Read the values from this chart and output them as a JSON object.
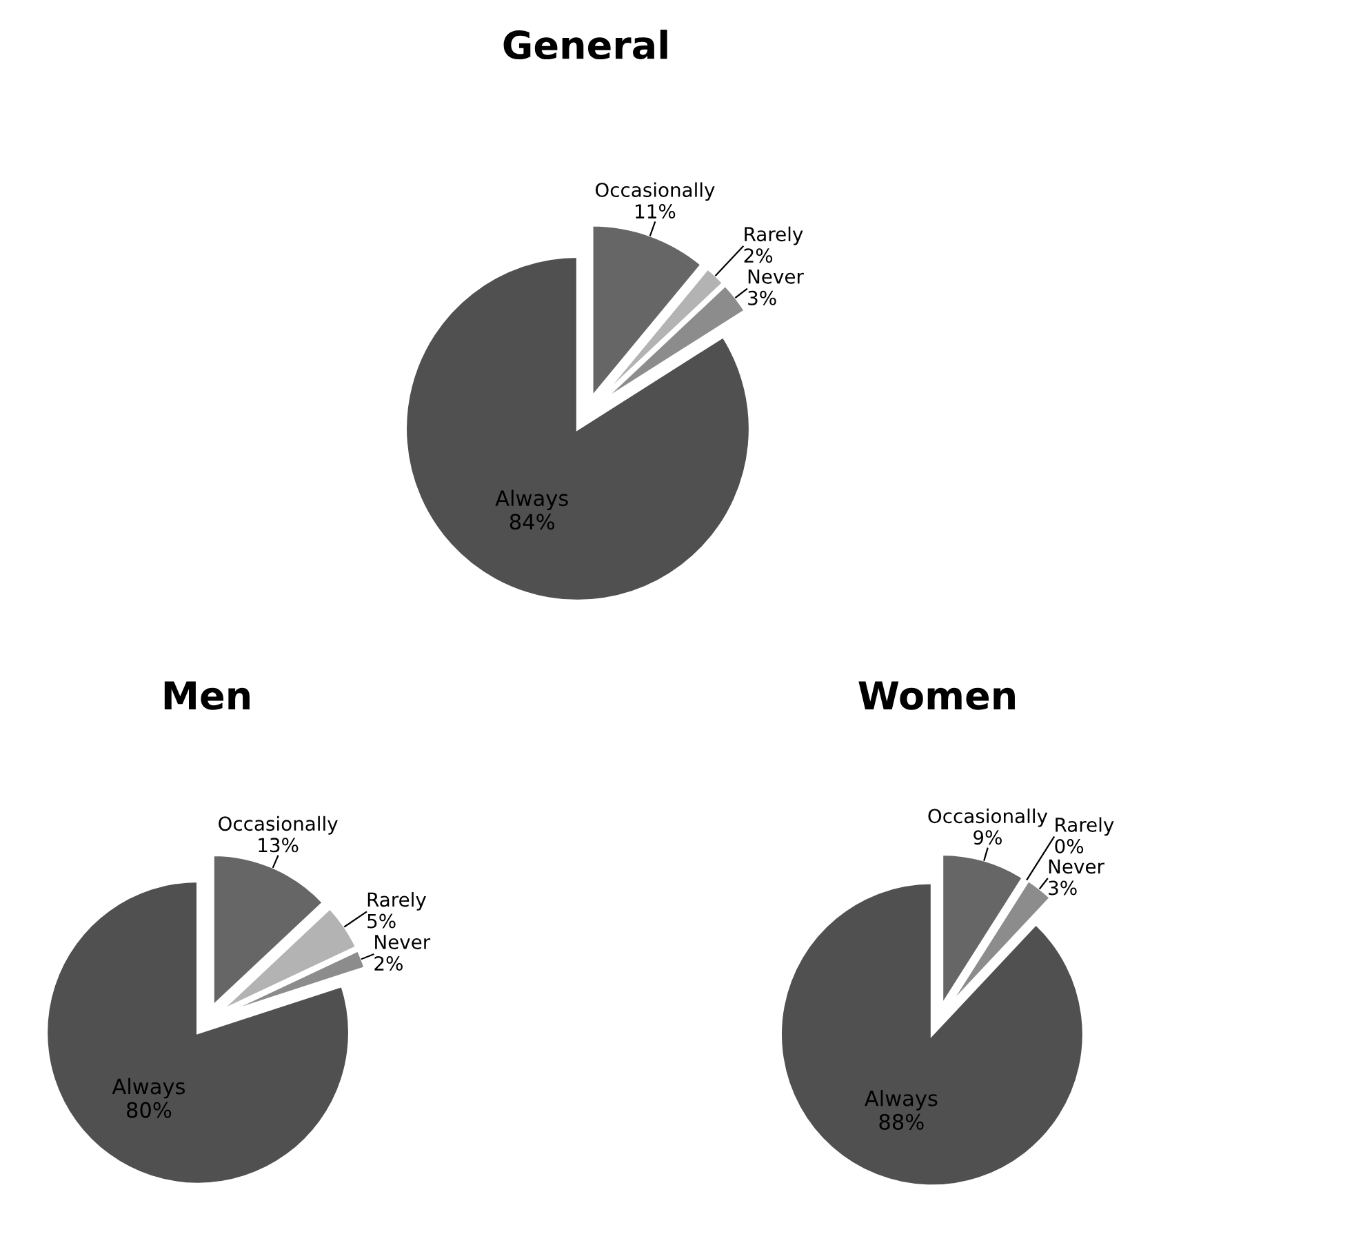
{
  "chart_data": [
    {
      "type": "pie",
      "title": "General",
      "categories": [
        "Occasionally",
        "Rarely",
        "Never",
        "Always"
      ],
      "values": [
        11,
        2,
        3,
        84
      ],
      "data_labels": true,
      "value_labels": [
        "11%",
        "2%",
        "3%",
        "84%"
      ],
      "colors": [
        "#666666",
        "#b3b3b3",
        "#8c8c8c",
        "#505050"
      ],
      "legend": false
    },
    {
      "type": "pie",
      "title": "Men",
      "categories": [
        "Occasionally",
        "Rarely",
        "Never",
        "Always"
      ],
      "values": [
        13,
        5,
        2,
        80
      ],
      "data_labels": true,
      "value_labels": [
        "13%",
        "5%",
        "2%",
        "80%"
      ],
      "colors": [
        "#666666",
        "#b3b3b3",
        "#8c8c8c",
        "#505050"
      ],
      "legend": false
    },
    {
      "type": "pie",
      "title": "Women",
      "categories": [
        "Occasionally",
        "Rarely",
        "Never",
        "Always"
      ],
      "values": [
        9,
        0,
        3,
        88
      ],
      "data_labels": true,
      "value_labels": [
        "9%",
        "0%",
        "3%",
        "88%"
      ],
      "colors": [
        "#666666",
        "#b3b3b3",
        "#8c8c8c",
        "#505050"
      ],
      "legend": false
    }
  ]
}
